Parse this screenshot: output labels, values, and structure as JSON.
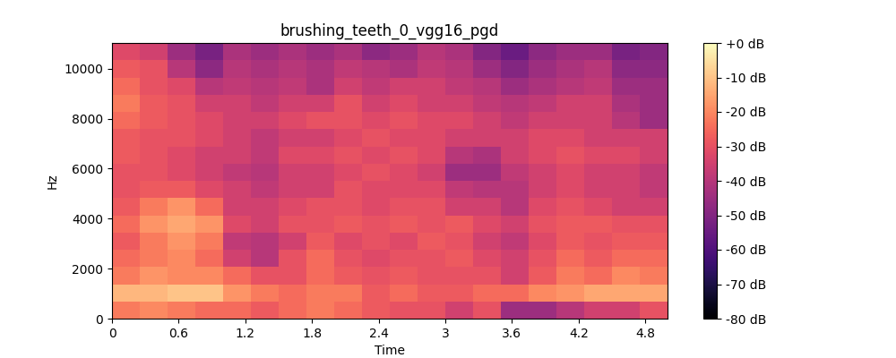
{
  "chart_data": {
    "type": "heatmap",
    "title": "brushing_teeth_0_vgg16_pgd",
    "x_label": "Time",
    "y_label": "Hz",
    "xlim": [
      0,
      5
    ],
    "ylim": [
      0,
      11025
    ],
    "xticks": [
      0,
      0.6,
      1.2,
      1.8,
      2.4,
      3,
      3.6,
      4.2,
      4.8
    ],
    "yticks": [
      0,
      2000,
      4000,
      6000,
      8000,
      10000
    ],
    "colorbar_range": [
      -80,
      0
    ],
    "colorbar_ticks": [
      {
        "value": 0,
        "label": "+0 dB"
      },
      {
        "value": -10,
        "label": "-10 dB"
      },
      {
        "value": -20,
        "label": "-20 dB"
      },
      {
        "value": -30,
        "label": "-30 dB"
      },
      {
        "value": -40,
        "label": "-40 dB"
      },
      {
        "value": -50,
        "label": "-50 dB"
      },
      {
        "value": -60,
        "label": "-60 dB"
      },
      {
        "value": -70,
        "label": "-70 dB"
      },
      {
        "value": -80,
        "label": "-80 dB"
      }
    ],
    "cells": [
      [
        -22,
        -20,
        -22,
        -25,
        -25,
        -28,
        -25,
        -22,
        -25,
        -28,
        -30,
        -30,
        -35,
        -30,
        -45,
        -45,
        -40,
        -35,
        -35,
        -30
      ],
      [
        -12,
        -12,
        -10,
        -10,
        -18,
        -22,
        -25,
        -22,
        -22,
        -28,
        -25,
        -28,
        -28,
        -25,
        -25,
        -20,
        -18,
        -15,
        -15,
        -15
      ],
      [
        -22,
        -18,
        -20,
        -20,
        -25,
        -30,
        -30,
        -25,
        -28,
        -30,
        -28,
        -30,
        -30,
        -30,
        -35,
        -28,
        -22,
        -25,
        -20,
        -22
      ],
      [
        -25,
        -22,
        -20,
        -25,
        -35,
        -40,
        -30,
        -25,
        -30,
        -32,
        -30,
        -30,
        -28,
        -32,
        -35,
        -30,
        -25,
        -28,
        -25,
        -25
      ],
      [
        -28,
        -22,
        -18,
        -22,
        -38,
        -40,
        -35,
        -28,
        -32,
        -30,
        -32,
        -28,
        -30,
        -35,
        -38,
        -32,
        -28,
        -30,
        -28,
        -28
      ],
      [
        -25,
        -18,
        -15,
        -18,
        -32,
        -35,
        -30,
        -30,
        -28,
        -30,
        -28,
        -30,
        -28,
        -32,
        -35,
        -30,
        -28,
        -28,
        -30,
        -30
      ],
      [
        -28,
        -22,
        -18,
        -25,
        -35,
        -35,
        -32,
        -30,
        -30,
        -32,
        -30,
        -30,
        -35,
        -35,
        -40,
        -32,
        -30,
        -32,
        -35,
        -35
      ],
      [
        -30,
        -28,
        -28,
        -32,
        -35,
        -38,
        -35,
        -35,
        -30,
        -32,
        -32,
        -32,
        -38,
        -40,
        -40,
        -35,
        -32,
        -35,
        -35,
        -38
      ],
      [
        -30,
        -30,
        -32,
        -35,
        -38,
        -40,
        -35,
        -35,
        -32,
        -30,
        -32,
        -35,
        -45,
        -45,
        -38,
        -35,
        -32,
        -35,
        -35,
        -38
      ],
      [
        -28,
        -30,
        -32,
        -35,
        -35,
        -38,
        -32,
        -32,
        -30,
        -32,
        -30,
        -32,
        -40,
        -42,
        -35,
        -32,
        -30,
        -32,
        -32,
        -35
      ],
      [
        -28,
        -30,
        -30,
        -32,
        -35,
        -38,
        -35,
        -35,
        -32,
        -30,
        -32,
        -32,
        -35,
        -35,
        -35,
        -32,
        -32,
        -35,
        -35,
        -35
      ],
      [
        -25,
        -28,
        -30,
        -32,
        -35,
        -35,
        -32,
        -30,
        -30,
        -32,
        -30,
        -32,
        -32,
        -35,
        -38,
        -35,
        -35,
        -35,
        -40,
        -45
      ],
      [
        -22,
        -28,
        -30,
        -35,
        -35,
        -38,
        -35,
        -35,
        -30,
        -35,
        -32,
        -35,
        -35,
        -38,
        -40,
        -38,
        -35,
        -35,
        -42,
        -45
      ],
      [
        -25,
        -30,
        -32,
        -40,
        -38,
        -40,
        -38,
        -42,
        -35,
        -38,
        -35,
        -35,
        -38,
        -40,
        -45,
        -42,
        -40,
        -38,
        -45,
        -45
      ],
      [
        -28,
        -30,
        -40,
        -48,
        -40,
        -42,
        -40,
        -42,
        -38,
        -40,
        -42,
        -38,
        -40,
        -45,
        -50,
        -45,
        -42,
        -40,
        -48,
        -48
      ],
      [
        -32,
        -35,
        -45,
        -52,
        -42,
        -45,
        -42,
        -45,
        -42,
        -48,
        -45,
        -40,
        -42,
        -50,
        -55,
        -48,
        -45,
        -45,
        -52,
        -50
      ]
    ]
  }
}
